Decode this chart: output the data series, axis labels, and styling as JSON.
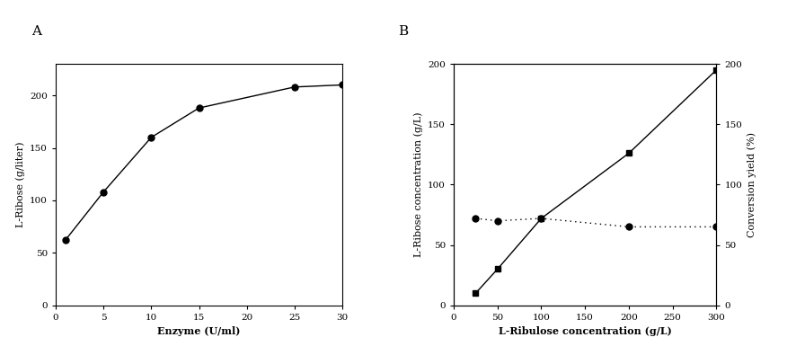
{
  "panel_A": {
    "label": "A",
    "x": [
      1,
      5,
      10,
      15,
      25,
      30
    ],
    "y": [
      62,
      108,
      160,
      188,
      208,
      210
    ],
    "xlabel": "Enzyme (U/ml)",
    "ylabel": "L-Ribose (g/liter)",
    "xlim": [
      0,
      30
    ],
    "ylim": [
      0,
      230
    ],
    "xticks": [
      0,
      5,
      10,
      15,
      20,
      25,
      30
    ],
    "yticks": [
      0,
      50,
      100,
      150,
      200
    ]
  },
  "panel_B": {
    "label": "B",
    "x": [
      25,
      50,
      100,
      200,
      300
    ],
    "y_square": [
      10,
      30,
      72,
      126,
      195
    ],
    "y_circle": [
      72,
      70,
      72,
      65,
      65
    ],
    "xlabel": "L-Ribulose concentration (g/L)",
    "ylabel_left": "L-Ribose concentration (g/L)",
    "ylabel_right": "Conversion yield (%)",
    "xlim": [
      0,
      300
    ],
    "ylim_left": [
      0,
      200
    ],
    "ylim_right": [
      0,
      200
    ],
    "xticks": [
      0,
      50,
      100,
      150,
      200,
      250,
      300
    ],
    "yticks_left": [
      0,
      50,
      100,
      150,
      200
    ],
    "yticks_right": [
      0,
      50,
      100,
      150,
      200
    ]
  },
  "bg_color": "#ffffff",
  "line_color": "#000000",
  "marker_color": "#000000",
  "fontsize_label": 8,
  "fontsize_tick": 7.5,
  "fontsize_panel": 11,
  "fontfamily": "DejaVu Serif"
}
